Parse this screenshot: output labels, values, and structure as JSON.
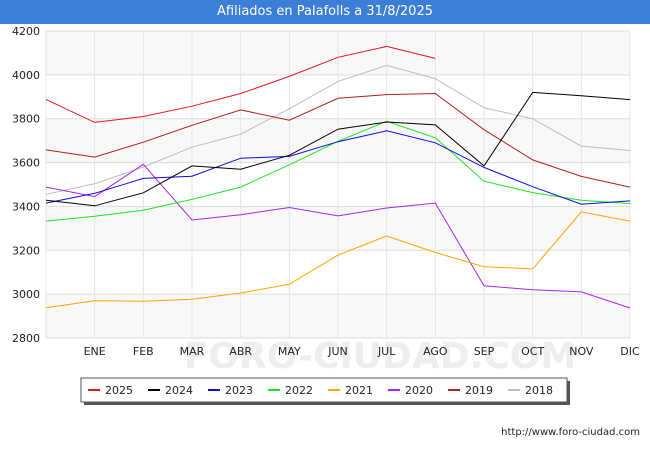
{
  "chart_data": {
    "type": "line",
    "title": "Afiliados en Palafolls a 31/8/2025",
    "categories": [
      "",
      "ENE",
      "FEB",
      "MAR",
      "ABR",
      "MAY",
      "JUN",
      "JUL",
      "AGO",
      "SEP",
      "OCT",
      "NOV",
      "DIC"
    ],
    "ylim": [
      2800,
      4200
    ],
    "yticks": [
      2800,
      3000,
      3200,
      3400,
      3600,
      3800,
      4000,
      4200
    ],
    "grid": true,
    "legend_position": "bottom",
    "watermark": "FORO-CIUDAD.COM",
    "source_url": "http://www.foro-ciudad.com",
    "series": [
      {
        "name": "2025",
        "color": "#e8121a",
        "values": [
          3888,
          3783,
          3810,
          3857,
          3915,
          3993,
          4080,
          4130,
          4075,
          null,
          null,
          null,
          null
        ]
      },
      {
        "name": "2024",
        "color": "#000000",
        "values": [
          3428,
          3403,
          3462,
          3585,
          3570,
          3633,
          3752,
          3785,
          3772,
          3585,
          3920,
          3905,
          3887
        ]
      },
      {
        "name": "2023",
        "color": "#0a0ae8",
        "values": [
          3415,
          3460,
          3528,
          3538,
          3620,
          3628,
          3695,
          3745,
          3690,
          3578,
          3490,
          3410,
          3425
        ]
      },
      {
        "name": "2022",
        "color": "#1ee61e",
        "values": [
          3333,
          3355,
          3383,
          3432,
          3488,
          3590,
          3697,
          3788,
          3713,
          3515,
          3463,
          3428,
          3413
        ]
      },
      {
        "name": "2021",
        "color": "#ffa500",
        "values": [
          2938,
          2970,
          2968,
          2977,
          3005,
          3045,
          3178,
          3265,
          3190,
          3125,
          3115,
          3375,
          3333
        ]
      },
      {
        "name": "2020",
        "color": "#a028f0",
        "values": [
          3488,
          3445,
          3592,
          3338,
          3362,
          3395,
          3357,
          3393,
          3415,
          3038,
          3020,
          3010,
          2937
        ]
      },
      {
        "name": "2019",
        "color": "#b41e1e",
        "values": [
          3658,
          3625,
          3693,
          3770,
          3840,
          3793,
          3893,
          3910,
          3915,
          3750,
          3612,
          3537,
          3488
        ]
      },
      {
        "name": "2018",
        "color": "#bdbdbd",
        "values": [
          3455,
          3503,
          3580,
          3670,
          3730,
          3845,
          3970,
          4043,
          3983,
          3850,
          3800,
          3675,
          3655
        ]
      }
    ]
  }
}
